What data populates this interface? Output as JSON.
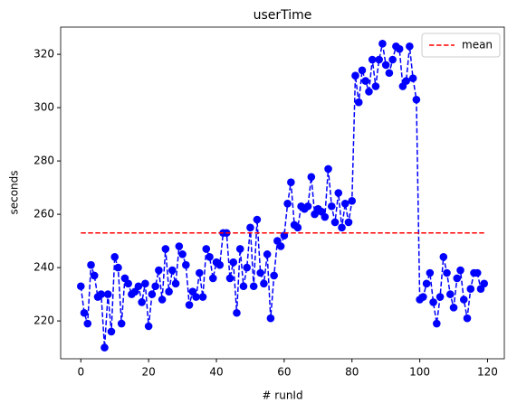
{
  "chart_data": {
    "type": "line",
    "title": "userTime",
    "xlabel": "# runId",
    "ylabel": "seconds",
    "x": [
      0,
      1,
      2,
      3,
      4,
      5,
      6,
      7,
      8,
      9,
      10,
      11,
      12,
      13,
      14,
      15,
      16,
      17,
      18,
      19,
      20,
      21,
      22,
      23,
      24,
      25,
      26,
      27,
      28,
      29,
      30,
      31,
      32,
      33,
      34,
      35,
      36,
      37,
      38,
      39,
      40,
      41,
      42,
      43,
      44,
      45,
      46,
      47,
      48,
      49,
      50,
      51,
      52,
      53,
      54,
      55,
      56,
      57,
      58,
      59,
      60,
      61,
      62,
      63,
      64,
      65,
      66,
      67,
      68,
      69,
      70,
      71,
      72,
      73,
      74,
      75,
      76,
      77,
      78,
      79,
      80,
      81,
      82,
      83,
      84,
      85,
      86,
      87,
      88,
      89,
      90,
      91,
      92,
      93,
      94,
      95,
      96,
      97,
      98,
      99,
      100,
      101,
      102,
      103,
      104,
      105,
      106,
      107,
      108,
      109,
      110,
      111,
      112,
      113,
      114,
      115,
      116,
      117,
      118,
      119
    ],
    "series": [
      {
        "color": "#0000ff",
        "values": [
          233,
          223,
          219,
          241,
          237,
          229,
          230,
          210,
          230,
          216,
          244,
          240,
          219,
          236,
          234,
          230,
          231,
          233,
          227,
          234,
          218,
          230,
          233,
          239,
          228,
          247,
          231,
          239,
          234,
          248,
          245,
          241,
          226,
          231,
          229,
          238,
          229,
          247,
          244,
          236,
          242,
          241,
          253,
          253,
          236,
          242,
          223,
          247,
          233,
          240,
          255,
          233,
          258,
          238,
          234,
          245,
          221,
          237,
          250,
          248,
          252,
          264,
          272,
          256,
          255,
          263,
          262,
          263,
          274,
          260,
          262,
          261,
          259,
          277,
          263,
          257,
          268,
          255,
          264,
          257,
          265,
          312,
          302,
          314,
          310,
          306,
          318,
          308,
          318,
          324,
          316,
          313,
          318,
          323,
          322,
          308,
          310,
          323,
          311,
          303,
          228,
          229,
          234,
          238,
          227,
          219,
          229,
          244,
          238,
          230,
          225,
          236,
          239,
          228,
          221,
          232,
          238,
          238,
          232,
          234
        ]
      }
    ],
    "mean": {
      "name": "mean",
      "value": 253,
      "color": "#ff0000"
    },
    "xlim": [
      -5.95,
      124.95
    ],
    "xticks": [
      0,
      20,
      40,
      60,
      80,
      100,
      120
    ],
    "ylim": [
      205.8,
      330.2
    ],
    "yticks": [
      220,
      240,
      260,
      280,
      300,
      320
    ],
    "legend": "upper right"
  }
}
